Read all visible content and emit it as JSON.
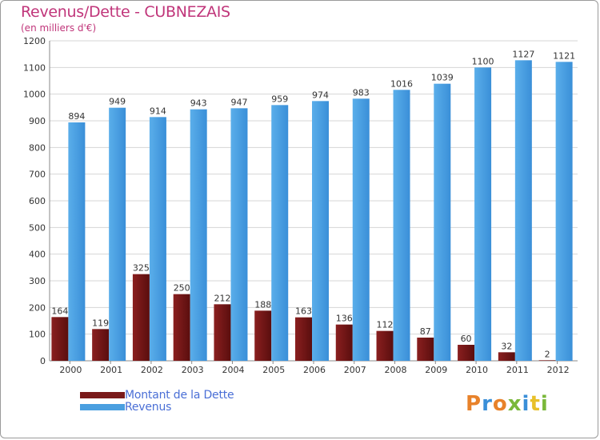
{
  "chart_data": {
    "type": "bar",
    "title": "Revenus/Dette - CUBNEZAIS",
    "subtitle": "(en milliers d'€)",
    "categories": [
      "2000",
      "2001",
      "2002",
      "2003",
      "2004",
      "2005",
      "2006",
      "2007",
      "2008",
      "2009",
      "2010",
      "2011",
      "2012"
    ],
    "series": [
      {
        "name": "Montant de la Dette",
        "color": "#7a1a1a",
        "values": [
          164,
          119,
          325,
          250,
          212,
          188,
          163,
          136,
          112,
          87,
          60,
          32,
          2
        ]
      },
      {
        "name": "Revenus",
        "color": "#4a9fe0",
        "values": [
          894,
          949,
          914,
          943,
          947,
          959,
          974,
          983,
          1016,
          1039,
          1100,
          1127,
          1121
        ]
      }
    ],
    "ylim": [
      0,
      1200
    ],
    "yticks": [
      0,
      100,
      200,
      300,
      400,
      500,
      600,
      700,
      800,
      900,
      1000,
      1100,
      1200
    ],
    "grid": true,
    "legend_position": "bottom-left"
  },
  "branding": {
    "logo_text": "Proxiti",
    "logo_colors": [
      "#e8822a",
      "#3a8fd8",
      "#e8822a",
      "#7ab83a",
      "#3a8fd8",
      "#e8c02a",
      "#7ab83a"
    ]
  }
}
